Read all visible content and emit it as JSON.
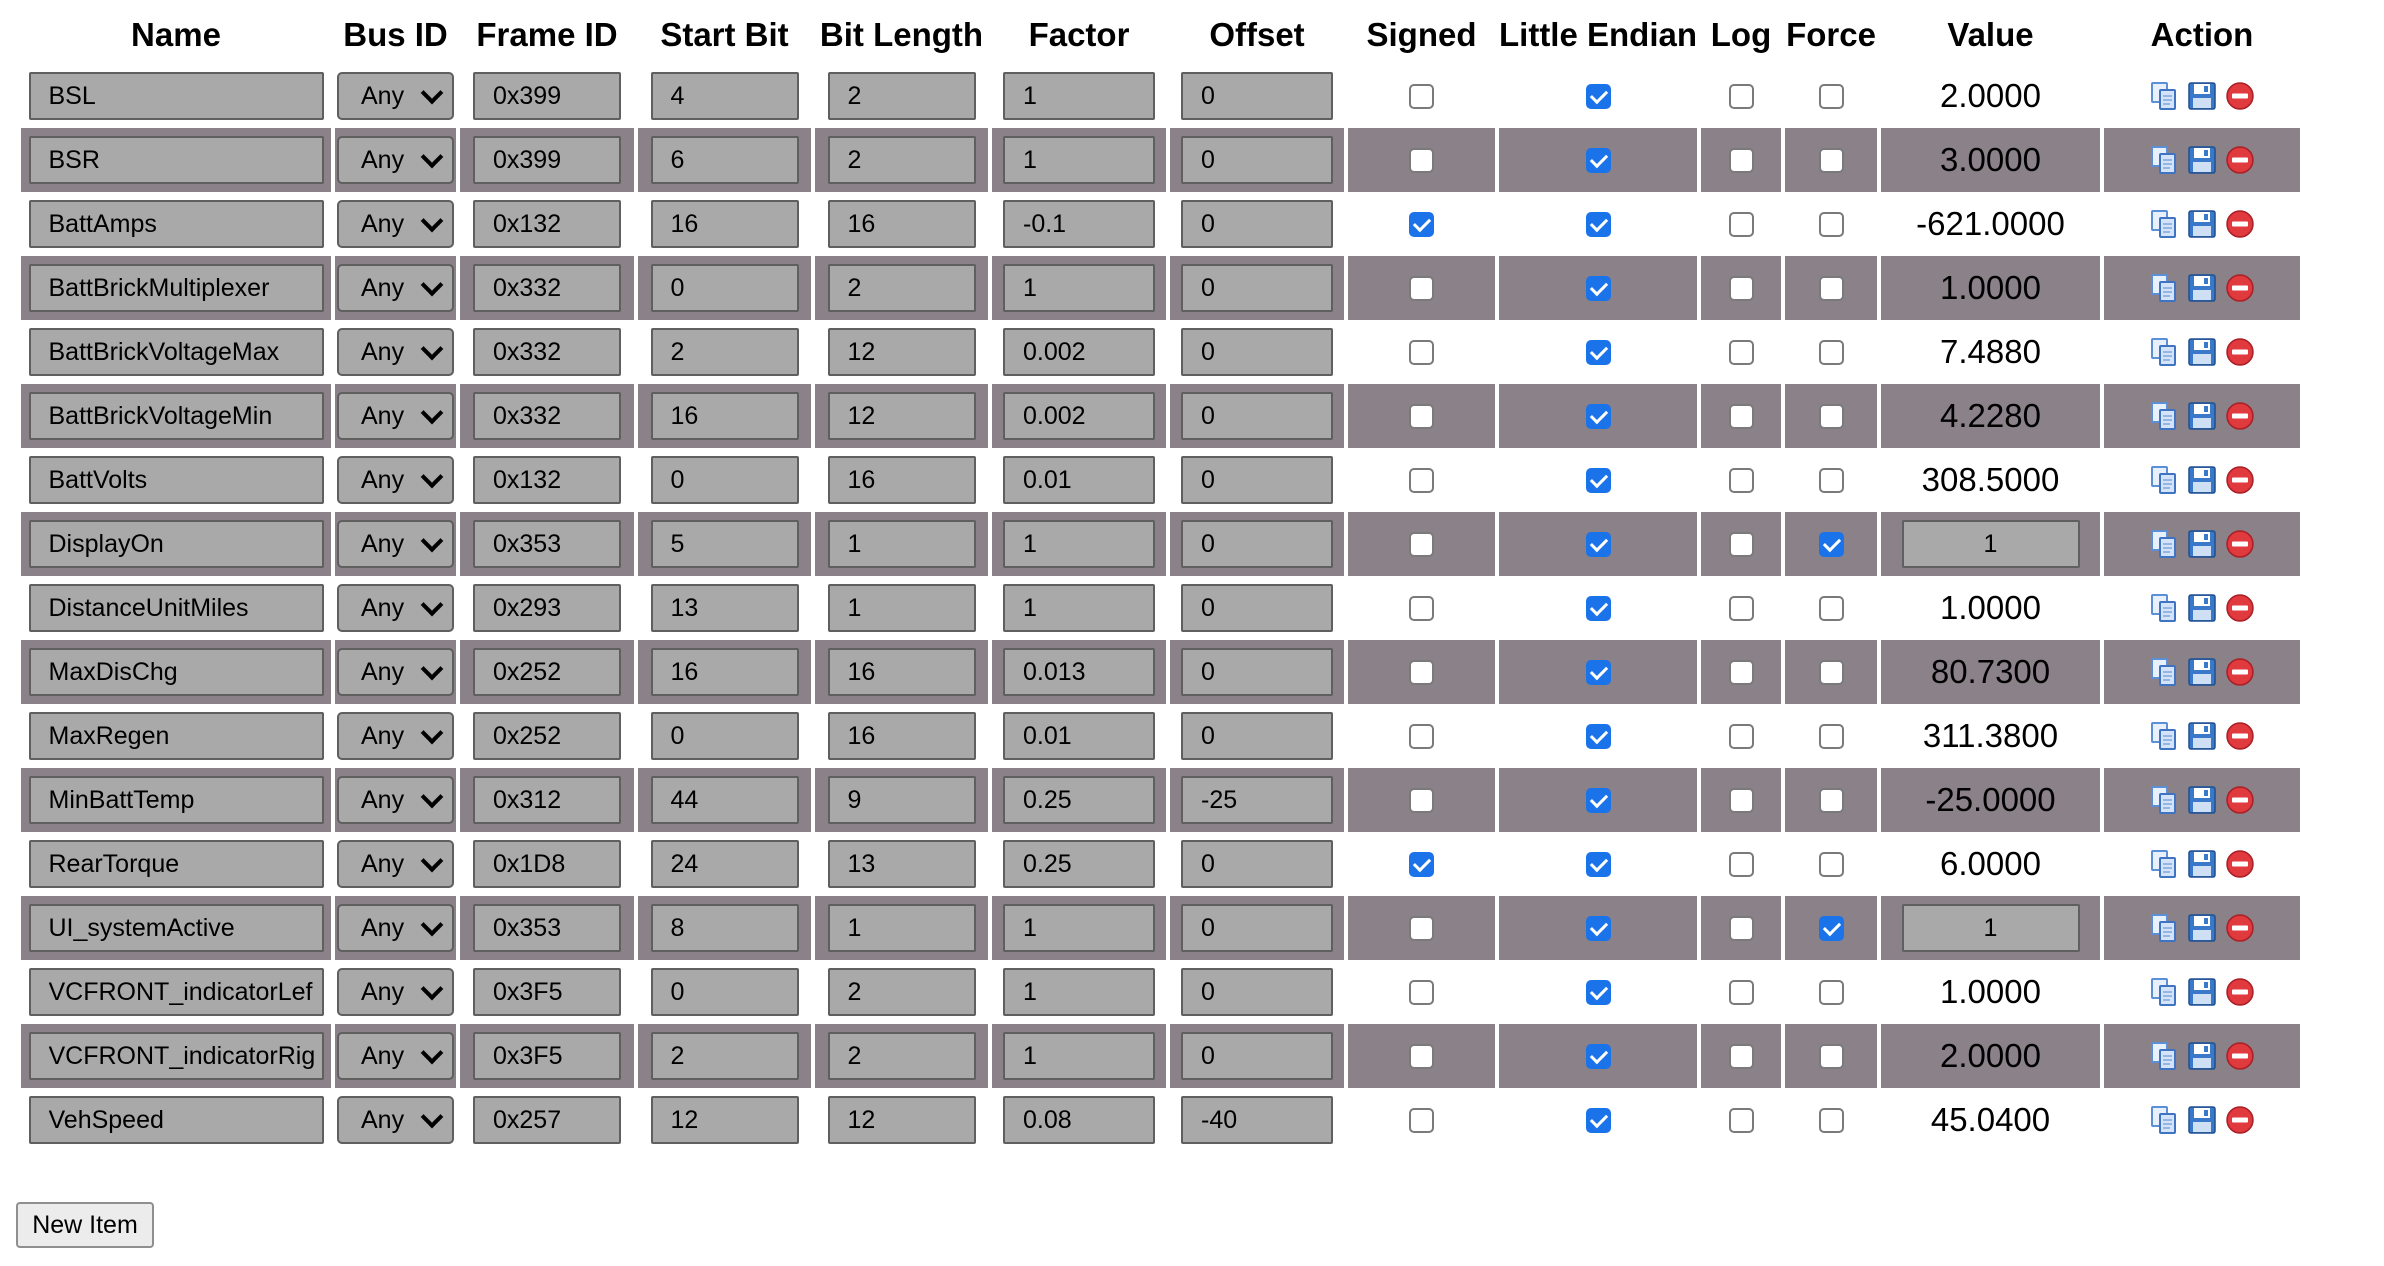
{
  "table": {
    "headers": {
      "name": "Name",
      "bus_id": "Bus ID",
      "frame_id": "Frame ID",
      "start_bit": "Start Bit",
      "bit_length": "Bit Length",
      "factor": "Factor",
      "offset": "Offset",
      "signed": "Signed",
      "little_endian": "Little Endian",
      "log": "Log",
      "force": "Force",
      "value": "Value",
      "action": "Action"
    },
    "rows": [
      {
        "name": "BSL",
        "bus": "Any",
        "frame_id": "0x399",
        "start_bit": "4",
        "bit_length": "2",
        "factor": "1",
        "offset": "0",
        "signed": false,
        "little_endian": true,
        "log": false,
        "force": false,
        "value": "2.0000"
      },
      {
        "name": "BSR",
        "bus": "Any",
        "frame_id": "0x399",
        "start_bit": "6",
        "bit_length": "2",
        "factor": "1",
        "offset": "0",
        "signed": false,
        "little_endian": true,
        "log": false,
        "force": false,
        "value": "3.0000"
      },
      {
        "name": "BattAmps",
        "bus": "Any",
        "frame_id": "0x132",
        "start_bit": "16",
        "bit_length": "16",
        "factor": "-0.1",
        "offset": "0",
        "signed": true,
        "little_endian": true,
        "log": false,
        "force": false,
        "value": "-621.0000"
      },
      {
        "name": "BattBrickMultiplexer",
        "bus": "Any",
        "frame_id": "0x332",
        "start_bit": "0",
        "bit_length": "2",
        "factor": "1",
        "offset": "0",
        "signed": false,
        "little_endian": true,
        "log": false,
        "force": false,
        "value": "1.0000"
      },
      {
        "name": "BattBrickVoltageMax",
        "bus": "Any",
        "frame_id": "0x332",
        "start_bit": "2",
        "bit_length": "12",
        "factor": "0.002",
        "offset": "0",
        "signed": false,
        "little_endian": true,
        "log": false,
        "force": false,
        "value": "7.4880"
      },
      {
        "name": "BattBrickVoltageMin",
        "bus": "Any",
        "frame_id": "0x332",
        "start_bit": "16",
        "bit_length": "12",
        "factor": "0.002",
        "offset": "0",
        "signed": false,
        "little_endian": true,
        "log": false,
        "force": false,
        "value": "4.2280"
      },
      {
        "name": "BattVolts",
        "bus": "Any",
        "frame_id": "0x132",
        "start_bit": "0",
        "bit_length": "16",
        "factor": "0.01",
        "offset": "0",
        "signed": false,
        "little_endian": true,
        "log": false,
        "force": false,
        "value": "308.5000"
      },
      {
        "name": "DisplayOn",
        "bus": "Any",
        "frame_id": "0x353",
        "start_bit": "5",
        "bit_length": "1",
        "factor": "1",
        "offset": "0",
        "signed": false,
        "little_endian": true,
        "log": false,
        "force": true,
        "value": "1"
      },
      {
        "name": "DistanceUnitMiles",
        "bus": "Any",
        "frame_id": "0x293",
        "start_bit": "13",
        "bit_length": "1",
        "factor": "1",
        "offset": "0",
        "signed": false,
        "little_endian": true,
        "log": false,
        "force": false,
        "value": "1.0000"
      },
      {
        "name": "MaxDisChg",
        "bus": "Any",
        "frame_id": "0x252",
        "start_bit": "16",
        "bit_length": "16",
        "factor": "0.013",
        "offset": "0",
        "signed": false,
        "little_endian": true,
        "log": false,
        "force": false,
        "value": "80.7300"
      },
      {
        "name": "MaxRegen",
        "bus": "Any",
        "frame_id": "0x252",
        "start_bit": "0",
        "bit_length": "16",
        "factor": "0.01",
        "offset": "0",
        "signed": false,
        "little_endian": true,
        "log": false,
        "force": false,
        "value": "311.3800"
      },
      {
        "name": "MinBattTemp",
        "bus": "Any",
        "frame_id": "0x312",
        "start_bit": "44",
        "bit_length": "9",
        "factor": "0.25",
        "offset": "-25",
        "signed": false,
        "little_endian": true,
        "log": false,
        "force": false,
        "value": "-25.0000"
      },
      {
        "name": "RearTorque",
        "bus": "Any",
        "frame_id": "0x1D8",
        "start_bit": "24",
        "bit_length": "13",
        "factor": "0.25",
        "offset": "0",
        "signed": true,
        "little_endian": true,
        "log": false,
        "force": false,
        "value": "6.0000"
      },
      {
        "name": "UI_systemActive",
        "bus": "Any",
        "frame_id": "0x353",
        "start_bit": "8",
        "bit_length": "1",
        "factor": "1",
        "offset": "0",
        "signed": false,
        "little_endian": true,
        "log": false,
        "force": true,
        "value": "1"
      },
      {
        "name": "VCFRONT_indicatorLef",
        "bus": "Any",
        "frame_id": "0x3F5",
        "start_bit": "0",
        "bit_length": "2",
        "factor": "1",
        "offset": "0",
        "signed": false,
        "little_endian": true,
        "log": false,
        "force": false,
        "value": "1.0000"
      },
      {
        "name": "VCFRONT_indicatorRig",
        "bus": "Any",
        "frame_id": "0x3F5",
        "start_bit": "2",
        "bit_length": "2",
        "factor": "1",
        "offset": "0",
        "signed": false,
        "little_endian": true,
        "log": false,
        "force": false,
        "value": "2.0000"
      },
      {
        "name": "VehSpeed",
        "bus": "Any",
        "frame_id": "0x257",
        "start_bit": "12",
        "bit_length": "12",
        "factor": "0.08",
        "offset": "-40",
        "signed": false,
        "little_endian": true,
        "log": false,
        "force": false,
        "value": "45.0400"
      }
    ]
  },
  "actions": {
    "icons": [
      "copy-icon",
      "save-icon",
      "delete-icon"
    ],
    "colors": {
      "copy": "#5b8fd6",
      "save": "#3a78c9",
      "delete": "#e0393e"
    }
  },
  "footer": {
    "new_item_label": "New Item"
  },
  "colors": {
    "alt_row": "#8b8189",
    "input_bg": "#a9a9a9",
    "checkbox_on": "#1a73e8"
  }
}
